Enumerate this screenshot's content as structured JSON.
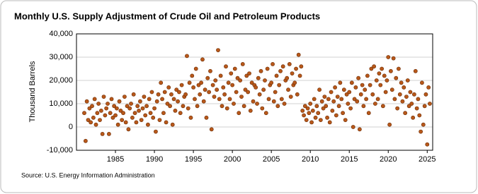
{
  "chart_data": {
    "type": "scatter",
    "title": "Monthly U.S. Supply Adjustment of Crude Oil and Petroleum Products",
    "y_label": "Thousand Barrels",
    "source": "Source: U.S. Energy Information Administration",
    "color": "#b8581a",
    "grid": true,
    "xlim": [
      1980,
      2025.7
    ],
    "ylim": [
      -10000,
      40000
    ],
    "xticks": [
      1985,
      1990,
      1995,
      2000,
      2005,
      2010,
      2015,
      2020,
      2025
    ],
    "yticks": [
      {
        "value": -10000,
        "label": "-10,000"
      },
      0,
      {
        "value": 10000,
        "label": "10,000"
      },
      {
        "value": 20000,
        "label": "20,000"
      },
      {
        "value": 30000,
        "label": "30,000"
      },
      {
        "value": 40000,
        "label": "40,000"
      }
    ],
    "x": [
      1981.0,
      1981.17,
      1981.33,
      1981.5,
      1981.67,
      1981.83,
      1982.0,
      1982.17,
      1982.33,
      1982.5,
      1982.67,
      1982.83,
      1983.0,
      1983.17,
      1983.33,
      1983.5,
      1983.67,
      1983.83,
      1984.0,
      1984.17,
      1984.33,
      1984.5,
      1984.67,
      1984.83,
      1985.0,
      1985.17,
      1985.33,
      1985.5,
      1985.67,
      1985.83,
      1986.0,
      1986.17,
      1986.33,
      1986.5,
      1986.67,
      1986.83,
      1987.0,
      1987.17,
      1987.33,
      1987.5,
      1987.67,
      1987.83,
      1988.0,
      1988.17,
      1988.33,
      1988.5,
      1988.67,
      1988.83,
      1989.0,
      1989.17,
      1989.33,
      1989.5,
      1989.67,
      1989.83,
      1990.0,
      1990.17,
      1990.33,
      1990.5,
      1990.67,
      1990.83,
      1991.0,
      1991.17,
      1991.33,
      1991.5,
      1991.67,
      1991.83,
      1992.0,
      1992.17,
      1992.33,
      1992.5,
      1992.67,
      1992.83,
      1993.0,
      1993.17,
      1993.33,
      1993.5,
      1993.67,
      1993.83,
      1994.0,
      1994.17,
      1994.33,
      1994.5,
      1994.67,
      1994.83,
      1995.0,
      1995.17,
      1995.33,
      1995.5,
      1995.67,
      1995.83,
      1996.0,
      1996.17,
      1996.33,
      1996.5,
      1996.67,
      1996.83,
      1997.0,
      1997.17,
      1997.33,
      1997.5,
      1997.67,
      1997.83,
      1998.0,
      1998.17,
      1998.33,
      1998.5,
      1998.67,
      1998.83,
      1999.0,
      1999.17,
      1999.33,
      1999.5,
      1999.67,
      1999.83,
      2000.0,
      2000.17,
      2000.33,
      2000.5,
      2000.67,
      2000.83,
      2001.0,
      2001.17,
      2001.33,
      2001.5,
      2001.67,
      2001.83,
      2002.0,
      2002.17,
      2002.33,
      2002.5,
      2002.67,
      2002.83,
      2003.0,
      2003.17,
      2003.33,
      2003.5,
      2003.67,
      2003.83,
      2004.0,
      2004.17,
      2004.33,
      2004.5,
      2004.67,
      2004.83,
      2005.0,
      2005.17,
      2005.33,
      2005.5,
      2005.67,
      2005.83,
      2006.0,
      2006.17,
      2006.33,
      2006.5,
      2006.67,
      2006.83,
      2007.0,
      2007.17,
      2007.33,
      2007.5,
      2007.67,
      2007.83,
      2008.0,
      2008.17,
      2008.33,
      2008.5,
      2008.67,
      2008.83,
      2009.0,
      2009.17,
      2009.33,
      2009.5,
      2009.67,
      2009.83,
      2010.0,
      2010.17,
      2010.33,
      2010.5,
      2010.67,
      2010.83,
      2011.0,
      2011.17,
      2011.33,
      2011.5,
      2011.67,
      2011.83,
      2012.0,
      2012.17,
      2012.33,
      2012.5,
      2012.67,
      2012.83,
      2013.0,
      2013.17,
      2013.33,
      2013.5,
      2013.67,
      2013.83,
      2014.0,
      2014.17,
      2014.33,
      2014.5,
      2014.67,
      2014.83,
      2015.0,
      2015.17,
      2015.33,
      2015.5,
      2015.67,
      2015.83,
      2016.0,
      2016.17,
      2016.33,
      2016.5,
      2016.67,
      2016.83,
      2017.0,
      2017.17,
      2017.33,
      2017.5,
      2017.67,
      2017.83,
      2018.0,
      2018.17,
      2018.33,
      2018.5,
      2018.67,
      2018.83,
      2019.0,
      2019.17,
      2019.33,
      2019.5,
      2019.67,
      2019.83,
      2020.0,
      2020.17,
      2020.33,
      2020.5,
      2020.67,
      2020.83,
      2021.0,
      2021.17,
      2021.33,
      2021.5,
      2021.67,
      2021.83,
      2022.0,
      2022.17,
      2022.33,
      2022.5,
      2022.67,
      2022.83,
      2023.0,
      2023.17,
      2023.33,
      2023.5,
      2023.67,
      2023.83,
      2024.0,
      2024.17,
      2024.33,
      2024.5,
      2024.67,
      2024.83,
      2025.0,
      2025.17,
      2025.33
    ],
    "values": [
      6000,
      -6000,
      11000,
      3000,
      8000,
      2000,
      9000,
      4000,
      12000,
      1000,
      6000,
      10000,
      3000,
      7000,
      -3000,
      13000,
      5000,
      8000,
      10000,
      -3000,
      6000,
      12000,
      4000,
      9000,
      5000,
      8000,
      1000,
      11000,
      7000,
      3000,
      6000,
      13000,
      2000,
      9000,
      -1000,
      8000,
      10000,
      4000,
      14000,
      6000,
      2000,
      9000,
      7000,
      11000,
      3000,
      8000,
      13000,
      5000,
      9000,
      1000,
      12000,
      6000,
      15000,
      4000,
      8000,
      -2000,
      11000,
      14000,
      3000,
      19000,
      12000,
      6000,
      15000,
      2000,
      10000,
      17000,
      9000,
      14000,
      1000,
      12000,
      7000,
      16000,
      11000,
      15000,
      6000,
      18000,
      9000,
      13000,
      14000,
      30500,
      8000,
      19000,
      4000,
      22000,
      17000,
      12000,
      25000,
      9000,
      18000,
      14000,
      19000,
      29000,
      11000,
      16000,
      4000,
      21000,
      15000,
      24000,
      -1000,
      18000,
      13000,
      20000,
      16000,
      33000,
      12000,
      22000,
      9000,
      17000,
      14000,
      26000,
      8000,
      19000,
      12000,
      23000,
      18000,
      10000,
      25000,
      15000,
      21000,
      6000,
      20000,
      13000,
      27000,
      9000,
      16000,
      22000,
      15000,
      23000,
      7000,
      19000,
      11000,
      18000,
      17000,
      10000,
      21000,
      14000,
      24000,
      8000,
      16000,
      20000,
      6000,
      25000,
      12000,
      18000,
      19000,
      27000,
      11000,
      15000,
      22000,
      9000,
      18000,
      24000,
      12000,
      26000,
      10000,
      20000,
      21000,
      16000,
      27000,
      13000,
      23000,
      18000,
      19000,
      25000,
      14000,
      31000,
      22000,
      26000,
      7000,
      5000,
      9000,
      3000,
      8000,
      6000,
      10000,
      2000,
      7000,
      12000,
      4000,
      9000,
      6000,
      16000,
      3000,
      11000,
      8000,
      13000,
      9000,
      4000,
      12000,
      2000,
      15000,
      7000,
      11000,
      17000,
      5000,
      13000,
      9000,
      19000,
      12000,
      6000,
      16000,
      3000,
      14000,
      10000,
      15000,
      8000,
      19000,
      0,
      12000,
      17000,
      11000,
      21000,
      -1000,
      14000,
      18000,
      9000,
      16000,
      12000,
      22000,
      6000,
      18000,
      25000,
      14000,
      26000,
      10000,
      20000,
      12000,
      23000,
      18000,
      25000,
      9000,
      22000,
      15000,
      20000,
      30000,
      1000,
      24000,
      16000,
      29500,
      12000,
      21000,
      8000,
      25000,
      14000,
      19000,
      11000,
      17000,
      6000,
      13000,
      20000,
      9000,
      15000,
      10000,
      4000,
      14000,
      24000,
      8000,
      12000,
      5000,
      -2000,
      19000,
      1000,
      9000,
      14000,
      -7500,
      17000,
      10000
    ]
  }
}
